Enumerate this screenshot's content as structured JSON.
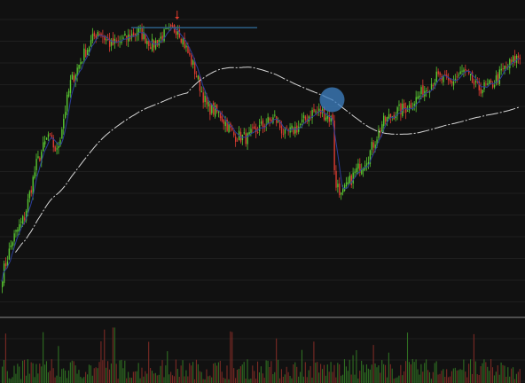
{
  "chart_data": {
    "type": "candlestick",
    "title": "",
    "xlabel": "",
    "ylabel": "",
    "ylim": [
      0,
      100
    ],
    "volume_ylim": [
      0,
      100
    ],
    "grid": true,
    "legend": "none",
    "colors": {
      "background": "#111111",
      "grid": "#1f1f1f",
      "up": "#59c832",
      "down": "#dc3c32",
      "fast_ma": "#2c3f9c",
      "slow_ma": "#d8d8d8",
      "resistance_line": "#2b5f86",
      "marker_circle": "#3d7fc0",
      "down_arrow": "#e03c2c",
      "separator": "#8a8a8a"
    },
    "price_path_anchors": [
      {
        "x": 0,
        "y": 14
      },
      {
        "x": 6,
        "y": 26
      },
      {
        "x": 13,
        "y": 34
      },
      {
        "x": 20,
        "y": 52
      },
      {
        "x": 27,
        "y": 62
      },
      {
        "x": 32,
        "y": 56
      },
      {
        "x": 40,
        "y": 80
      },
      {
        "x": 48,
        "y": 90
      },
      {
        "x": 56,
        "y": 98
      },
      {
        "x": 64,
        "y": 93
      },
      {
        "x": 72,
        "y": 95
      },
      {
        "x": 80,
        "y": 98
      },
      {
        "x": 88,
        "y": 93
      },
      {
        "x": 96,
        "y": 97
      },
      {
        "x": 103,
        "y": 99
      },
      {
        "x": 112,
        "y": 86
      },
      {
        "x": 120,
        "y": 72
      },
      {
        "x": 128,
        "y": 69
      },
      {
        "x": 136,
        "y": 62
      },
      {
        "x": 144,
        "y": 61
      },
      {
        "x": 152,
        "y": 65
      },
      {
        "x": 160,
        "y": 68
      },
      {
        "x": 166,
        "y": 62
      },
      {
        "x": 174,
        "y": 65
      },
      {
        "x": 182,
        "y": 70
      },
      {
        "x": 188,
        "y": 70
      },
      {
        "x": 194,
        "y": 67
      },
      {
        "x": 196,
        "y": 48
      },
      {
        "x": 199,
        "y": 41
      },
      {
        "x": 207,
        "y": 49
      },
      {
        "x": 215,
        "y": 55
      },
      {
        "x": 223,
        "y": 66
      },
      {
        "x": 231,
        "y": 70
      },
      {
        "x": 239,
        "y": 72
      },
      {
        "x": 247,
        "y": 77
      },
      {
        "x": 255,
        "y": 82
      },
      {
        "x": 263,
        "y": 80
      },
      {
        "x": 271,
        "y": 84
      },
      {
        "x": 279,
        "y": 78
      },
      {
        "x": 287,
        "y": 79
      },
      {
        "x": 295,
        "y": 85
      },
      {
        "x": 303,
        "y": 89
      }
    ],
    "moving_averages": [
      {
        "name": "",
        "period": 6
      },
      {
        "name": "",
        "period": 110
      }
    ],
    "annotations": {
      "resistance_level": 99,
      "arrow_at_x": 103,
      "circle_at_x": 194
    }
  }
}
